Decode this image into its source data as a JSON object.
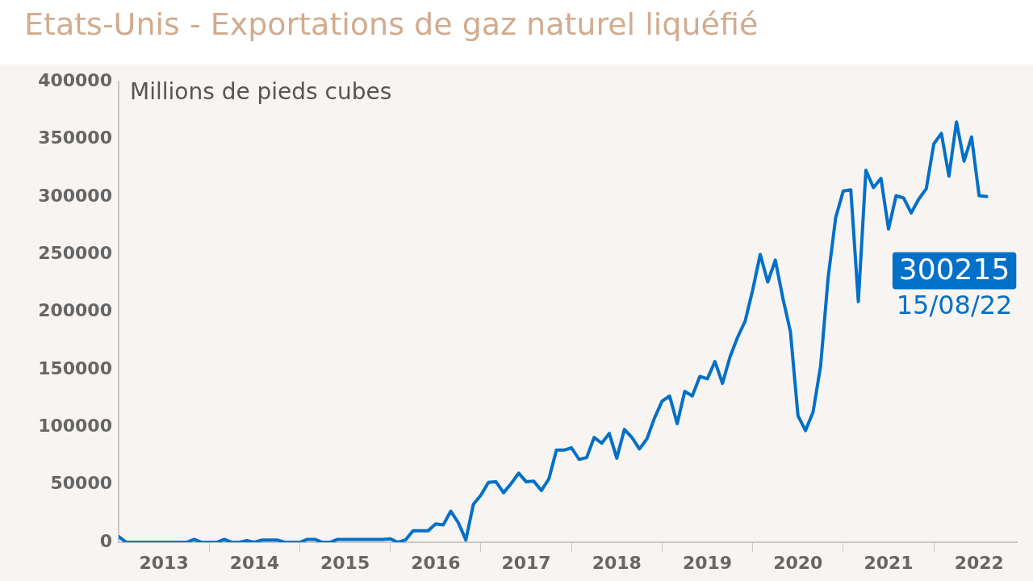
{
  "chart_data": {
    "type": "line",
    "title": "Etats-Unis - Exportations de gaz naturel liquéfié",
    "ylabel": "Millions de pieds cubes",
    "x": [
      "2013-01",
      "2013-02",
      "2013-03",
      "2013-04",
      "2013-05",
      "2013-06",
      "2013-07",
      "2013-08",
      "2013-09",
      "2013-10",
      "2013-11",
      "2013-12",
      "2014-01",
      "2014-02",
      "2014-03",
      "2014-04",
      "2014-05",
      "2014-06",
      "2014-07",
      "2014-08",
      "2014-09",
      "2014-10",
      "2014-11",
      "2014-12",
      "2015-01",
      "2015-02",
      "2015-03",
      "2015-04",
      "2015-05",
      "2015-06",
      "2015-07",
      "2015-08",
      "2015-09",
      "2015-10",
      "2015-11",
      "2015-12",
      "2016-01",
      "2016-02",
      "2016-03",
      "2016-04",
      "2016-05",
      "2016-06",
      "2016-07",
      "2016-08",
      "2016-09",
      "2016-10",
      "2016-11",
      "2016-12",
      "2017-01",
      "2017-02",
      "2017-03",
      "2017-04",
      "2017-05",
      "2017-06",
      "2017-07",
      "2017-08",
      "2017-09",
      "2017-10",
      "2017-11",
      "2017-12",
      "2018-01",
      "2018-02",
      "2018-03",
      "2018-04",
      "2018-05",
      "2018-06",
      "2018-07",
      "2018-08",
      "2018-09",
      "2018-10",
      "2018-11",
      "2018-12",
      "2019-01",
      "2019-02",
      "2019-03",
      "2019-04",
      "2019-05",
      "2019-06",
      "2019-07",
      "2019-08",
      "2019-09",
      "2019-10",
      "2019-11",
      "2019-12",
      "2020-01",
      "2020-02",
      "2020-03",
      "2020-04",
      "2020-05",
      "2020-06",
      "2020-07",
      "2020-08",
      "2020-09",
      "2020-10",
      "2020-11",
      "2020-12",
      "2021-01",
      "2021-02",
      "2021-03",
      "2021-04",
      "2021-05",
      "2021-06",
      "2021-07",
      "2021-08",
      "2021-09",
      "2021-10",
      "2021-11",
      "2021-12",
      "2022-01",
      "2022-02",
      "2022-03",
      "2022-04",
      "2022-05",
      "2022-06",
      "2022-07",
      "2022-08"
    ],
    "series": [
      {
        "color": "#0070c8",
        "values": [
          5000,
          0,
          0,
          0,
          0,
          0,
          0,
          0,
          0,
          0,
          2500,
          0,
          0,
          0,
          2500,
          0,
          0,
          1500,
          0,
          2000,
          2000,
          2000,
          0,
          0,
          0,
          2500,
          2500,
          0,
          0,
          2500,
          2500,
          2500,
          2500,
          2500,
          2500,
          2500,
          3000,
          0,
          2000,
          10000,
          10000,
          10000,
          16000,
          15000,
          27000,
          17000,
          2000,
          33000,
          41000,
          52000,
          52500,
          43000,
          51000,
          60000,
          52500,
          53000,
          45000,
          55000,
          80000,
          80000,
          82000,
          72000,
          73500,
          91000,
          86000,
          94500,
          73000,
          98000,
          91000,
          81000,
          90000,
          108000,
          122500,
          127000,
          103000,
          131000,
          127000,
          144000,
          142000,
          157000,
          138000,
          161000,
          178000,
          192000,
          219000,
          250000,
          226000,
          245000,
          212000,
          183000,
          110000,
          97000,
          113000,
          153000,
          230000,
          282000,
          305000,
          306000,
          209000,
          323000,
          308000,
          316000,
          272000,
          301000,
          299000,
          286000,
          298000,
          307000,
          346000,
          355000,
          318000,
          365000,
          331000,
          352000,
          301000,
          300215
        ]
      }
    ],
    "xlim": [
      "2013-01",
      "2022-12"
    ],
    "xticks": [
      {
        "value": "2013-07",
        "label": "2013"
      },
      {
        "value": "2014-01",
        "label": null
      },
      {
        "value": "2014-07",
        "label": "2014"
      },
      {
        "value": "2015-01",
        "label": null
      },
      {
        "value": "2015-07",
        "label": "2015"
      },
      {
        "value": "2016-01",
        "label": null
      },
      {
        "value": "2016-07",
        "label": "2016"
      },
      {
        "value": "2017-01",
        "label": null
      },
      {
        "value": "2017-07",
        "label": "2017"
      },
      {
        "value": "2018-01",
        "label": null
      },
      {
        "value": "2018-07",
        "label": "2018"
      },
      {
        "value": "2019-01",
        "label": null
      },
      {
        "value": "2019-07",
        "label": "2019"
      },
      {
        "value": "2020-01",
        "label": null
      },
      {
        "value": "2020-07",
        "label": "2020"
      },
      {
        "value": "2021-01",
        "label": null
      },
      {
        "value": "2021-07",
        "label": "2021"
      },
      {
        "value": "2022-01",
        "label": null
      },
      {
        "value": "2022-07",
        "label": "2022"
      }
    ],
    "ylim": [
      0,
      400000
    ],
    "yticks": [
      0,
      50000,
      100000,
      150000,
      200000,
      250000,
      300000,
      350000,
      400000
    ],
    "annotations": [
      {
        "text": "300215",
        "x": "2022-08",
        "y": 300215
      },
      "15/08/22"
    ],
    "grid": false,
    "legend": false,
    "marker": "none",
    "line_style": "solid"
  }
}
